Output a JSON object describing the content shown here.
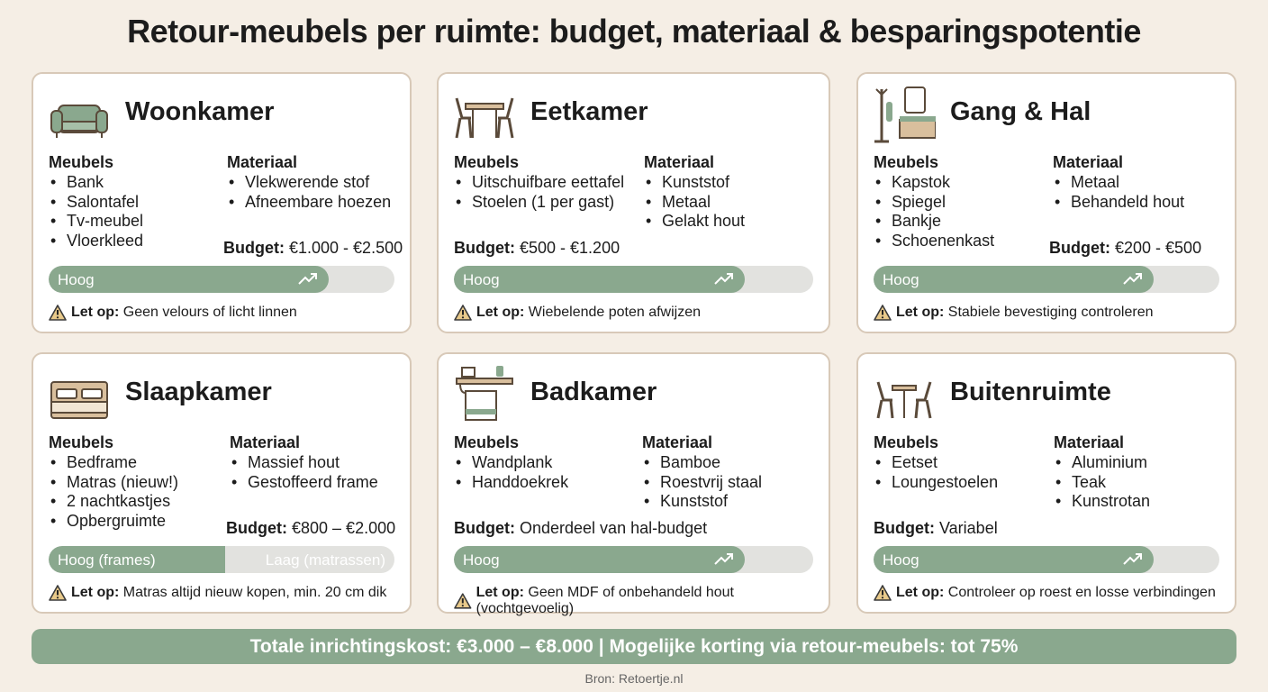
{
  "title": "Retour-meubels per ruimte: budget, materiaal & besparingspotentie",
  "cards": [
    {
      "room": "Woonkamer",
      "furniture_label": "Meubels",
      "furniture": [
        "Bank",
        "Salontafel",
        "Tv-meubel",
        "Vloerkleed"
      ],
      "material_label": "Materiaal",
      "materials": [
        "Vlekwerende stof",
        "Afneembare hoezen"
      ],
      "budget_label": "Budget:",
      "budget": "€1.000 - €2.500",
      "bar_labels": [
        "Hoog"
      ],
      "note_label": "Let op:",
      "note": "Geen velours of licht linnen"
    },
    {
      "room": "Eetkamer",
      "furniture_label": "Meubels",
      "furniture": [
        "Uitschuifbare eettafel",
        "Stoelen (1 per gast)"
      ],
      "material_label": "Materiaal",
      "materials": [
        "Kunststof",
        "Metaal",
        "Gelakt hout"
      ],
      "budget_label": "Budget:",
      "budget": "€500 - €1.200",
      "bar_labels": [
        "Hoog"
      ],
      "note_label": "Let op:",
      "note": "Wiebelende poten afwijzen"
    },
    {
      "room": "Gang & Hal",
      "furniture_label": "Meubels",
      "furniture": [
        "Kapstok",
        "Spiegel",
        "Bankje",
        "Schoenenkast"
      ],
      "material_label": "Materiaal",
      "materials": [
        "Metaal",
        "Behandeld hout"
      ],
      "budget_label": "Budget:",
      "budget": "€200 - €500",
      "bar_labels": [
        "Hoog"
      ],
      "note_label": "Let op:",
      "note": "Stabiele bevestiging controleren"
    },
    {
      "room": "Slaapkamer",
      "furniture_label": "Meubels",
      "furniture": [
        "Bedframe",
        "Matras (nieuw!)",
        "2 nachtkastjes",
        "Opbergruimte"
      ],
      "material_label": "Materiaal",
      "materials": [
        "Massief hout",
        "Gestoffeerd frame"
      ],
      "budget_label": "Budget:",
      "budget": "€800 – €2.000",
      "bar_labels": [
        "Hoog (frames)",
        "Laag (matrassen)"
      ],
      "note_label": "Let op:",
      "note": "Matras altijd nieuw kopen, min. 20 cm dik"
    },
    {
      "room": "Badkamer",
      "furniture_label": "Meubels",
      "furniture": [
        "Wandplank",
        "Handdoekrek"
      ],
      "material_label": "Materiaal",
      "materials": [
        "Bamboe",
        "Roestvrij staal",
        "Kunststof"
      ],
      "budget_label": "Budget:",
      "budget": "Onderdeel van hal-budget",
      "bar_labels": [
        "Hoog"
      ],
      "note_label": "Let op:",
      "note": "Geen MDF of onbehandeld hout (vochtgevoelig)"
    },
    {
      "room": "Buitenruimte",
      "furniture_label": "Meubels",
      "furniture": [
        "Eetset",
        "Loungestoelen"
      ],
      "material_label": "Materiaal",
      "materials": [
        "Aluminium",
        "Teak",
        "Kunstrotan"
      ],
      "budget_label": "Budget:",
      "budget": "Variabel",
      "bar_labels": [
        "Hoog"
      ],
      "note_label": "Let op:",
      "note": "Controleer op roest en losse verbindingen"
    }
  ],
  "total": "Totale inrichtingskost: €3.000 – €8.000 | Mogelijke korting via retour-meubels: tot 75%",
  "source": "Bron: Retoertje.nl"
}
